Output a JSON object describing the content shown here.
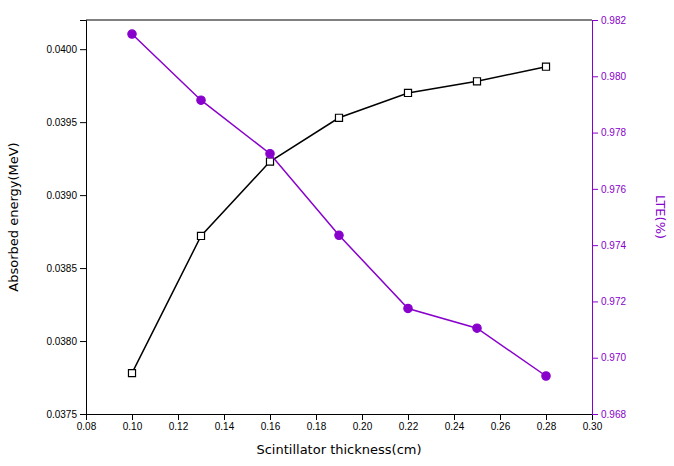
{
  "chart_data": {
    "type": "line",
    "xlabel": "Scintillator thickness(cm)",
    "ylabel": "Absorbed energy(MeV)",
    "y2label": "LTE(%)",
    "x": [
      0.1,
      0.13,
      0.16,
      0.19,
      0.22,
      0.25,
      0.28
    ],
    "series": [
      {
        "color": "#000000",
        "marker": "square",
        "line_style": "solid",
        "axis": "y",
        "values": [
          0.03778,
          0.03872,
          0.03923,
          0.03953,
          0.0397,
          0.03978,
          0.03988
        ]
      },
      {
        "color": "#8800cc",
        "marker": "circle",
        "line_style": "solid",
        "axis": "y2",
        "values": [
          0.9815,
          0.97915,
          0.97725,
          0.97435,
          0.97175,
          0.97105,
          0.96935
        ]
      }
    ],
    "xlim": [
      0.08,
      0.3
    ],
    "xticks": [
      0.08,
      {
        "value": 0.1,
        "label": "0.10"
      },
      0.12,
      0.14,
      0.16,
      0.18,
      {
        "value": 0.2,
        "label": "0.20"
      },
      0.22,
      0.24,
      0.26,
      0.28,
      {
        "value": 0.3,
        "label": "0.30"
      }
    ],
    "ylim": [
      0.0375,
      0.0402
    ],
    "yticks": [
      0.0375,
      {
        "value": 0.038,
        "label": "0.0380"
      },
      0.0385,
      {
        "value": 0.039,
        "label": "0.0390"
      },
      0.0395,
      {
        "value": 0.04,
        "label": "0.0400"
      }
    ],
    "y2lim": [
      0.968,
      0.982
    ],
    "y2ticks": [
      0.968,
      {
        "value": 0.97,
        "label": "0.970"
      },
      0.972,
      0.974,
      0.976,
      0.978,
      {
        "value": 0.98,
        "label": "0.980"
      },
      0.982
    ],
    "grid": false
  }
}
